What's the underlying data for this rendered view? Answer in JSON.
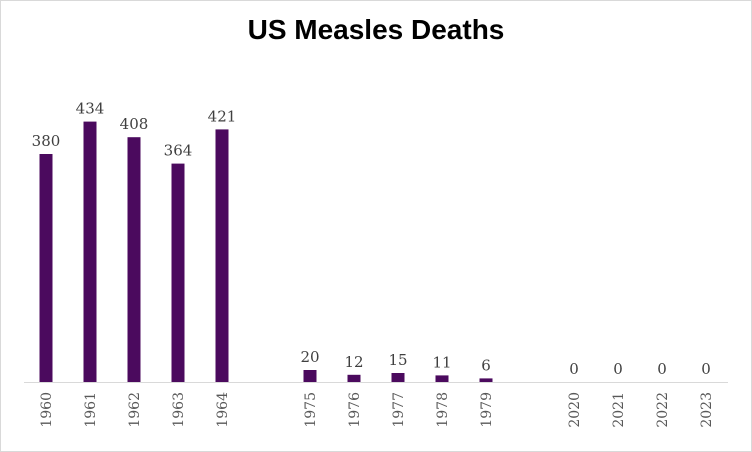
{
  "chart_data": {
    "type": "bar",
    "title": "US Measles Deaths",
    "xlabel": "",
    "ylabel": "",
    "categories": [
      "1960",
      "1961",
      "1962",
      "1963",
      "1964",
      "",
      "1975",
      "1976",
      "1977",
      "1978",
      "1979",
      "",
      "2020",
      "2021",
      "2022",
      "2023"
    ],
    "values": [
      380,
      434,
      408,
      364,
      421,
      null,
      20,
      12,
      15,
      11,
      6,
      null,
      0,
      0,
      0,
      0
    ],
    "ylim": [
      0,
      480
    ],
    "grid": false,
    "legend": "none",
    "bar_color": "#4b0a5e",
    "axis_color": "#d9d9d9"
  }
}
